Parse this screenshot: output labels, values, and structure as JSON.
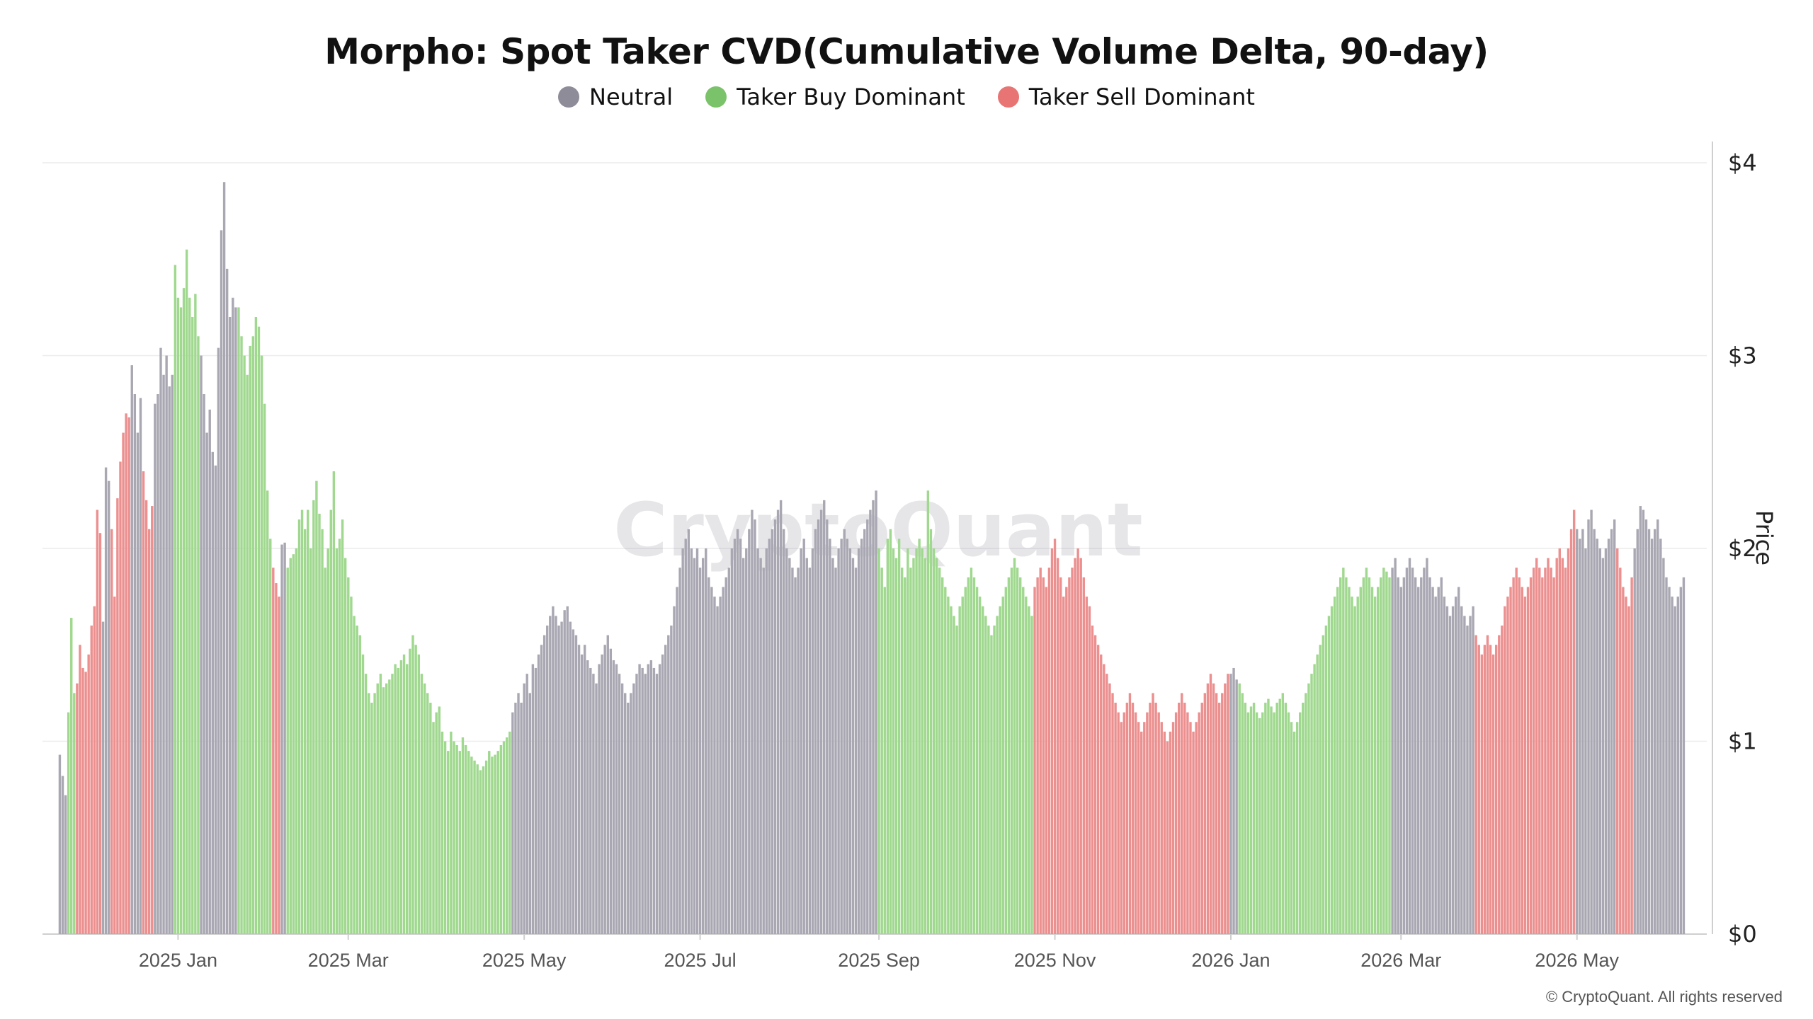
{
  "title": "Morpho: Spot Taker CVD(Cumulative Volume Delta, 90-day)",
  "watermark": "CryptoQuant",
  "copyright": "© CryptoQuant. All rights reserved",
  "legend": [
    {
      "label": "Neutral",
      "color": "#8e8c98"
    },
    {
      "label": "Taker Buy Dominant",
      "color": "#7ac36a"
    },
    {
      "label": "Taker Sell Dominant",
      "color": "#e87474"
    }
  ],
  "chart_data": {
    "type": "bar",
    "title": "Morpho: Spot Taker CVD(Cumulative Volume Delta, 90-day)",
    "ylabel": "Price",
    "ylim": [
      0,
      4
    ],
    "y_ticks": [
      "$0",
      "$1",
      "$2",
      "$3",
      "$4"
    ],
    "x_range": [
      "2024-11-15",
      "2026-06-15"
    ],
    "x_ticks": [
      {
        "date": "2025-01-01",
        "label": "2025 Jan"
      },
      {
        "date": "2025-03-01",
        "label": "2025 Mar"
      },
      {
        "date": "2025-05-01",
        "label": "2025 May"
      },
      {
        "date": "2025-07-01",
        "label": "2025 Jul"
      },
      {
        "date": "2025-09-01",
        "label": "2025 Sep"
      },
      {
        "date": "2025-11-01",
        "label": "2025 Nov"
      },
      {
        "date": "2026-01-01",
        "label": "2026 Jan"
      },
      {
        "date": "2026-03-01",
        "label": "2026 Mar"
      },
      {
        "date": "2026-05-01",
        "label": "2026 May"
      }
    ],
    "grid": true,
    "legend_position": "top-center",
    "status_colors": {
      "N": "#a9a7b2",
      "B": "#9fd88e",
      "S": "#ec8f8f"
    },
    "series": [
      {
        "start": "2024-11-21",
        "end": "2024-11-23",
        "status": "N",
        "values": [
          0.93,
          0.82,
          0.72
        ]
      },
      {
        "start": "2024-11-24",
        "end": "2024-11-26",
        "status": "B",
        "values": [
          1.15,
          1.64,
          1.25
        ]
      },
      {
        "start": "2024-11-27",
        "end": "2024-12-05",
        "status": "S",
        "values": [
          1.3,
          1.5,
          1.38,
          1.36,
          1.45,
          1.6,
          1.7,
          2.2,
          2.08
        ]
      },
      {
        "start": "2024-12-06",
        "end": "2024-12-08",
        "status": "N",
        "values": [
          1.62,
          2.42,
          2.35
        ]
      },
      {
        "start": "2024-12-09",
        "end": "2024-12-15",
        "status": "S",
        "values": [
          2.1,
          1.75,
          2.26,
          2.45,
          2.6,
          2.7,
          2.68
        ]
      },
      {
        "start": "2024-12-16",
        "end": "2024-12-19",
        "status": "N",
        "values": [
          2.95,
          2.8,
          2.6,
          2.78
        ]
      },
      {
        "start": "2024-12-20",
        "end": "2024-12-23",
        "status": "S",
        "values": [
          2.4,
          2.25,
          2.1,
          2.22
        ]
      },
      {
        "start": "2024-12-24",
        "end": "2024-12-30",
        "status": "N",
        "values": [
          2.75,
          2.8,
          3.04,
          2.9,
          3.0,
          2.84,
          2.9
        ]
      },
      {
        "start": "2024-12-31",
        "end": "2025-01-08",
        "status": "B",
        "values": [
          3.47,
          3.3,
          3.25,
          3.35,
          3.55,
          3.3,
          3.2,
          3.32,
          3.1
        ]
      },
      {
        "start": "2025-01-09",
        "end": "2025-01-17",
        "status": "N",
        "values": [
          3.0,
          2.8,
          2.6,
          2.72,
          2.5,
          2.43,
          3.04,
          3.65,
          3.9
        ]
      },
      {
        "start": "2025-01-18",
        "end": "2025-01-21",
        "status": "N",
        "values": [
          3.45,
          3.2,
          3.3,
          3.25
        ]
      },
      {
        "start": "2025-01-22",
        "end": "2025-02-02",
        "status": "B",
        "values": [
          3.25,
          3.1,
          3.0,
          2.9,
          3.05,
          3.1,
          3.2,
          3.15,
          3.0,
          2.75,
          2.3,
          2.05
        ]
      },
      {
        "start": "2025-02-03",
        "end": "2025-02-05",
        "status": "S",
        "values": [
          1.9,
          1.82,
          1.75
        ]
      },
      {
        "start": "2025-02-06",
        "end": "2025-02-07",
        "status": "N",
        "values": [
          2.02,
          2.03
        ]
      },
      {
        "start": "2025-02-08",
        "end": "2025-02-27",
        "status": "B",
        "values": [
          1.9,
          1.95,
          1.97,
          2.0,
          2.15,
          2.2,
          2.1,
          2.2,
          2.0,
          2.25,
          2.35,
          2.18,
          2.1,
          1.9,
          2.0,
          2.2,
          2.4,
          2.0,
          2.05,
          2.15
        ]
      },
      {
        "start": "2025-02-28",
        "end": "2025-04-26",
        "status": "B",
        "values": [
          1.95,
          1.85,
          1.75,
          1.65,
          1.6,
          1.55,
          1.45,
          1.35,
          1.25,
          1.2,
          1.25,
          1.3,
          1.35,
          1.28,
          1.3,
          1.32,
          1.35,
          1.4,
          1.38,
          1.42,
          1.45,
          1.4,
          1.48,
          1.55,
          1.5,
          1.45,
          1.35,
          1.3,
          1.25,
          1.2,
          1.1,
          1.15,
          1.18,
          1.05,
          1.0,
          0.95,
          1.05,
          1.0,
          0.98,
          0.95,
          1.02,
          0.98,
          0.95,
          0.92,
          0.9,
          0.88,
          0.85,
          0.87,
          0.9,
          0.95,
          0.92,
          0.93,
          0.95,
          0.98,
          1.0,
          1.02,
          1.05
        ]
      },
      {
        "start": "2025-04-27",
        "end": "2025-07-05",
        "status": "N",
        "values": [
          1.15,
          1.2,
          1.25,
          1.2,
          1.3,
          1.35,
          1.25,
          1.4,
          1.38,
          1.45,
          1.5,
          1.55,
          1.6,
          1.65,
          1.7,
          1.65,
          1.6,
          1.62,
          1.68,
          1.7,
          1.62,
          1.58,
          1.55,
          1.5,
          1.45,
          1.5,
          1.42,
          1.38,
          1.35,
          1.3,
          1.4,
          1.45,
          1.5,
          1.55,
          1.48,
          1.42,
          1.4,
          1.35,
          1.3,
          1.25,
          1.2,
          1.25,
          1.3,
          1.35,
          1.4,
          1.38,
          1.35,
          1.4,
          1.42,
          1.38,
          1.35,
          1.4,
          1.45,
          1.5,
          1.55,
          1.6,
          1.7,
          1.8,
          1.9,
          2.0,
          2.05,
          2.1,
          2.0,
          1.95,
          2.0,
          1.9,
          1.95,
          2.0,
          1.85,
          1.8
        ]
      },
      {
        "start": "2025-07-06",
        "end": "2025-08-31",
        "status": "N",
        "values": [
          1.75,
          1.7,
          1.75,
          1.8,
          1.85,
          1.9,
          2.0,
          2.05,
          2.1,
          2.05,
          1.95,
          2.0,
          2.1,
          2.2,
          2.15,
          2.0,
          1.95,
          1.9,
          2.0,
          2.05,
          2.1,
          2.15,
          2.2,
          2.25,
          2.1,
          2.0,
          1.95,
          1.9,
          1.85,
          1.9,
          2.0,
          2.05,
          1.95,
          1.9,
          2.0,
          2.1,
          2.15,
          2.2,
          2.25,
          2.15,
          2.05,
          1.95,
          1.9,
          2.0,
          2.05,
          2.1,
          2.05,
          2.0,
          1.95,
          1.9,
          2.0,
          2.05,
          2.1,
          2.15,
          2.2,
          2.25,
          2.3
        ]
      },
      {
        "start": "2025-09-01",
        "end": "2025-10-24",
        "status": "B",
        "values": [
          2.0,
          1.9,
          1.8,
          2.05,
          2.1,
          2.0,
          1.95,
          2.05,
          1.9,
          1.85,
          2.0,
          1.9,
          1.95,
          2.0,
          2.05,
          2.0,
          1.95,
          2.3,
          2.1,
          2.0,
          1.95,
          1.9,
          1.85,
          1.8,
          1.75,
          1.7,
          1.65,
          1.6,
          1.7,
          1.75,
          1.8,
          1.85,
          1.9,
          1.85,
          1.8,
          1.75,
          1.7,
          1.65,
          1.6,
          1.55,
          1.6,
          1.65,
          1.7,
          1.75,
          1.8,
          1.85,
          1.9,
          1.95,
          1.9,
          1.85,
          1.8,
          1.75,
          1.7,
          1.65
        ]
      },
      {
        "start": "2025-10-25",
        "end": "2025-12-31",
        "status": "S",
        "values": [
          1.8,
          1.85,
          1.9,
          1.85,
          1.8,
          1.9,
          2.0,
          2.05,
          1.95,
          1.85,
          1.75,
          1.8,
          1.85,
          1.9,
          1.95,
          2.0,
          1.95,
          1.85,
          1.75,
          1.7,
          1.6,
          1.55,
          1.5,
          1.45,
          1.4,
          1.35,
          1.3,
          1.25,
          1.2,
          1.15,
          1.1,
          1.15,
          1.2,
          1.25,
          1.2,
          1.15,
          1.1,
          1.05,
          1.1,
          1.15,
          1.2,
          1.25,
          1.2,
          1.15,
          1.1,
          1.05,
          1.0,
          1.05,
          1.1,
          1.15,
          1.2,
          1.25,
          1.2,
          1.15,
          1.1,
          1.05,
          1.1,
          1.15,
          1.2,
          1.25,
          1.3,
          1.35,
          1.3,
          1.25,
          1.2,
          1.25,
          1.3,
          1.35
        ]
      },
      {
        "start": "2026-01-01",
        "end": "2026-01-03",
        "status": "N",
        "values": [
          1.35,
          1.38,
          1.32
        ]
      },
      {
        "start": "2026-01-04",
        "end": "2026-02-25",
        "status": "B",
        "values": [
          1.3,
          1.25,
          1.2,
          1.15,
          1.18,
          1.2,
          1.15,
          1.12,
          1.15,
          1.2,
          1.22,
          1.18,
          1.15,
          1.2,
          1.22,
          1.25,
          1.2,
          1.15,
          1.1,
          1.05,
          1.1,
          1.15,
          1.2,
          1.25,
          1.3,
          1.35,
          1.4,
          1.45,
          1.5,
          1.55,
          1.6,
          1.65,
          1.7,
          1.75,
          1.8,
          1.85,
          1.9,
          1.85,
          1.8,
          1.75,
          1.7,
          1.75,
          1.8,
          1.85,
          1.9,
          1.85,
          1.8,
          1.75,
          1.8,
          1.85,
          1.9,
          1.88,
          1.85
        ]
      },
      {
        "start": "2026-02-26",
        "end": "2026-03-26",
        "status": "N",
        "values": [
          1.9,
          1.95,
          1.85,
          1.8,
          1.85,
          1.9,
          1.95,
          1.9,
          1.85,
          1.8,
          1.85,
          1.9,
          1.95,
          1.85,
          1.8,
          1.75,
          1.8,
          1.85,
          1.75,
          1.7,
          1.65,
          1.7,
          1.75,
          1.8,
          1.7,
          1.65,
          1.6,
          1.65,
          1.7
        ]
      },
      {
        "start": "2026-03-27",
        "end": "2026-04-30",
        "status": "S",
        "values": [
          1.55,
          1.5,
          1.45,
          1.5,
          1.55,
          1.5,
          1.45,
          1.5,
          1.55,
          1.6,
          1.7,
          1.75,
          1.8,
          1.85,
          1.9,
          1.85,
          1.8,
          1.75,
          1.8,
          1.85,
          1.9,
          1.95,
          1.9,
          1.85,
          1.9,
          1.95,
          1.9,
          1.85,
          1.95,
          2.0,
          1.95,
          1.9,
          2.0,
          2.1,
          2.2
        ]
      },
      {
        "start": "2026-05-01",
        "end": "2026-05-14",
        "status": "N",
        "values": [
          2.1,
          2.05,
          2.1,
          2.0,
          2.15,
          2.2,
          2.1,
          2.05,
          2.0,
          1.95,
          2.0,
          2.05,
          2.1,
          2.15
        ]
      },
      {
        "start": "2026-05-15",
        "end": "2026-05-20",
        "status": "S",
        "values": [
          2.0,
          1.9,
          1.8,
          1.75,
          1.7,
          1.85
        ]
      },
      {
        "start": "2026-05-21",
        "end": "2026-06-07",
        "status": "N",
        "values": [
          2.0,
          2.1,
          2.22,
          2.2,
          2.15,
          2.1,
          2.05,
          2.1,
          2.15,
          2.05,
          1.95,
          1.85,
          1.8,
          1.75,
          1.7,
          1.75,
          1.8,
          1.85
        ]
      }
    ]
  }
}
